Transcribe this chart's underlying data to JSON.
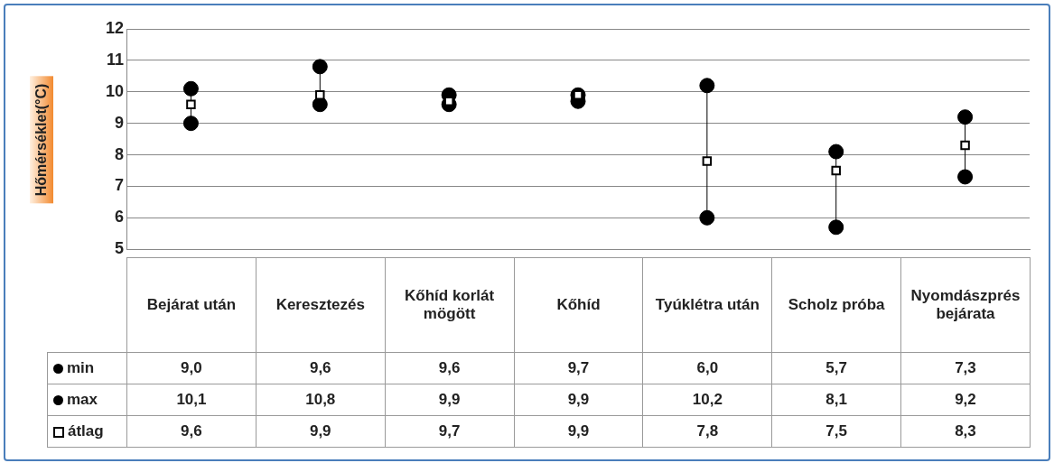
{
  "chart_data": {
    "type": "scatter",
    "ylabel": "Hőmérséklet(°C)",
    "categories": [
      "Bejárat után",
      "Keresztezés",
      "Kőhíd korlát mögött",
      "Kőhíd",
      "Tyúklétra után",
      "Scholz próba",
      "Nyomdászprés bejárata"
    ],
    "series": [
      {
        "name": "min",
        "color": "#000000",
        "marker": "circle",
        "values": [
          9.0,
          9.6,
          9.6,
          9.7,
          6.0,
          5.7,
          7.3
        ],
        "value_labels": [
          "9,0",
          "9,6",
          "9,6",
          "9,7",
          "6,0",
          "5,7",
          "7,3"
        ]
      },
      {
        "name": "max",
        "color": "#000000",
        "marker": "circle",
        "values": [
          10.1,
          10.8,
          9.9,
          9.9,
          10.2,
          8.1,
          9.2
        ],
        "value_labels": [
          "10,1",
          "10,8",
          "9,9",
          "9,9",
          "10,2",
          "8,1",
          "9,2"
        ]
      },
      {
        "name": "átlag",
        "color": "#000000",
        "marker": "square",
        "values": [
          9.6,
          9.9,
          9.7,
          9.9,
          7.8,
          7.5,
          8.3
        ],
        "value_labels": [
          "9,6",
          "9,9",
          "9,7",
          "9,9",
          "7,8",
          "7,5",
          "8,3"
        ]
      }
    ],
    "ylim": [
      5,
      12
    ],
    "yticks": [
      5,
      6,
      7,
      8,
      9,
      10,
      11,
      12
    ],
    "grid": "y",
    "legend": "bottom left"
  }
}
